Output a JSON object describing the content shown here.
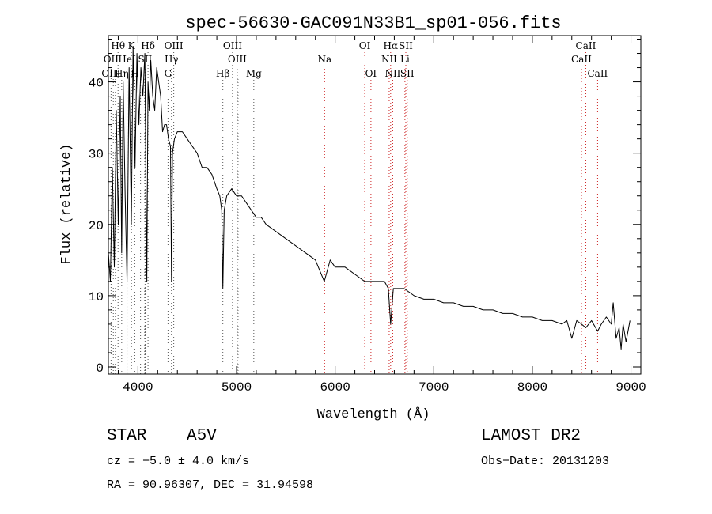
{
  "chart_data": {
    "type": "line",
    "title": "spec-56630-GAC091N33B1_sp01-056.fits",
    "xlabel": "Wavelength (Å)",
    "ylabel": "Flux (relative)",
    "xlim": [
      3700,
      9100
    ],
    "ylim": [
      -1,
      46.5
    ],
    "x_ticks": [
      4000,
      5000,
      6000,
      7000,
      8000,
      9000
    ],
    "x_tick_labels": [
      "4000",
      "5000",
      "6000",
      "7000",
      "8000",
      "9000"
    ],
    "y_ticks": [
      0,
      10,
      20,
      30,
      40
    ],
    "y_tick_labels": [
      "0",
      "10",
      "20",
      "30",
      "40"
    ],
    "series": [
      {
        "name": "flux",
        "x": [
          3700,
          3720,
          3740,
          3760,
          3780,
          3800,
          3820,
          3835,
          3850,
          3870,
          3889,
          3910,
          3933,
          3950,
          3970,
          3990,
          4010,
          4030,
          4050,
          4070,
          4090,
          4102,
          4115,
          4130,
          4150,
          4170,
          4190,
          4210,
          4230,
          4250,
          4270,
          4290,
          4310,
          4330,
          4340,
          4350,
          4370,
          4400,
          4450,
          4500,
          4550,
          4600,
          4650,
          4700,
          4750,
          4800,
          4830,
          4850,
          4861,
          4875,
          4900,
          4950,
          5000,
          5050,
          5100,
          5150,
          5200,
          5250,
          5300,
          5400,
          5500,
          5600,
          5700,
          5800,
          5890,
          5950,
          6000,
          6100,
          6200,
          6300,
          6400,
          6500,
          6540,
          6563,
          6590,
          6650,
          6700,
          6800,
          6900,
          7000,
          7100,
          7200,
          7300,
          7400,
          7500,
          7600,
          7700,
          7800,
          7900,
          8000,
          8100,
          8200,
          8300,
          8350,
          8400,
          8450,
          8498,
          8542,
          8600,
          8662,
          8700,
          8750,
          8800,
          8820,
          8850,
          8880,
          8900,
          8920,
          8950,
          8990
        ],
        "values": [
          16,
          12,
          28,
          14,
          36,
          20,
          38,
          16,
          40,
          24,
          12,
          42,
          20,
          45,
          28,
          44,
          34,
          42,
          38,
          44,
          12,
          40,
          36,
          43,
          38,
          36,
          42,
          40,
          38,
          33,
          34,
          34,
          32,
          31,
          12,
          30,
          32,
          33,
          33,
          32,
          31,
          30,
          28,
          28,
          27,
          25,
          24,
          22,
          11,
          22,
          24,
          25,
          24,
          24,
          23,
          22,
          21,
          21,
          20,
          19,
          18,
          17,
          16,
          15,
          12,
          15,
          14,
          14,
          13,
          12,
          12,
          12,
          11,
          6,
          11,
          11,
          11,
          10,
          9.5,
          9.5,
          9,
          9,
          8.5,
          8.5,
          8,
          8,
          7.5,
          7.5,
          7,
          7,
          6.5,
          6.5,
          6,
          6.5,
          4,
          6.5,
          6,
          5.5,
          6.5,
          5,
          6,
          7,
          6,
          9,
          4,
          5.5,
          2.5,
          6,
          3.5,
          6.5
        ]
      }
    ],
    "line_markers": [
      {
        "label": "Hθ",
        "wavelength": 3798,
        "row": 1
      },
      {
        "label": "K",
        "wavelength": 3934,
        "row": 1
      },
      {
        "label": "Hδ",
        "wavelength": 4102,
        "row": 1
      },
      {
        "label": "OIII",
        "wavelength": 4363,
        "row": 1
      },
      {
        "label": "OIII",
        "wavelength": 4959,
        "row": 1
      },
      {
        "label": "OI",
        "wavelength": 6300,
        "row": 1
      },
      {
        "label": "Hα",
        "wavelength": 6563,
        "row": 1
      },
      {
        "label": "SII",
        "wavelength": 6717,
        "row": 1
      },
      {
        "label": "CaII",
        "wavelength": 8542,
        "row": 1
      },
      {
        "label": "OII",
        "wavelength": 3727,
        "row": 2
      },
      {
        "label": "HeI",
        "wavelength": 3889,
        "row": 2
      },
      {
        "label": "SII",
        "wavelength": 4072,
        "row": 2
      },
      {
        "label": "Hγ",
        "wavelength": 4340,
        "row": 2
      },
      {
        "label": "OIII",
        "wavelength": 5007,
        "row": 2
      },
      {
        "label": "Na",
        "wavelength": 5893,
        "row": 2
      },
      {
        "label": "NII",
        "wavelength": 6548,
        "row": 2
      },
      {
        "label": "Li",
        "wavelength": 6708,
        "row": 2
      },
      {
        "label": "CaII",
        "wavelength": 8498,
        "row": 2
      },
      {
        "label": "OIII",
        "wavelength": 3727,
        "row": 3
      },
      {
        "label": "Hη",
        "wavelength": 3835,
        "row": 3
      },
      {
        "label": "H",
        "wavelength": 3968,
        "row": 3
      },
      {
        "label": "G",
        "wavelength": 4305,
        "row": 3
      },
      {
        "label": "Hβ",
        "wavelength": 4861,
        "row": 3
      },
      {
        "label": "Mg",
        "wavelength": 5175,
        "row": 3
      },
      {
        "label": "OI",
        "wavelength": 6363,
        "row": 3
      },
      {
        "label": "NII",
        "wavelength": 6584,
        "row": 3
      },
      {
        "label": "SII",
        "wavelength": 6731,
        "row": 3
      },
      {
        "label": "CaII",
        "wavelength": 8662,
        "row": 3
      }
    ],
    "extra_dotted_lines": [
      3750,
      3771,
      3889,
      4026,
      4068,
      4076,
      5015
    ],
    "colors": {
      "spectrum": "#000000",
      "marker_dots_red": "#cc2222",
      "marker_dots_black": "#555555"
    }
  },
  "info": {
    "object_type": "STAR",
    "subclass": "A5V",
    "survey": "LAMOST DR2",
    "cz_line": "cz = −5.0 ± 4.0 km/s",
    "obs_date": "Obs−Date: 20131203",
    "coords": "RA =  90.96307, DEC =  31.94598"
  }
}
